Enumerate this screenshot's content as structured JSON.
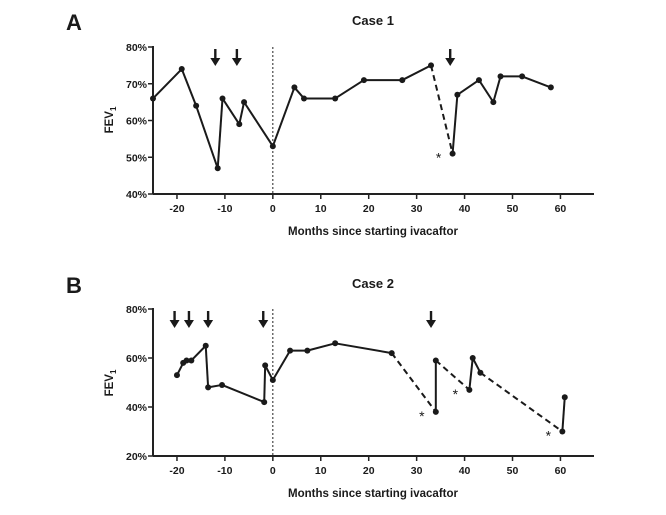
{
  "chart_data": [
    {
      "type": "line",
      "panel_label": "A",
      "title": "Case 1",
      "xlabel": "Months since starting ivacaftor",
      "ylabel": "FEV",
      "ylabel_subscript": "1",
      "xlim": [
        -25,
        67
      ],
      "ylim": [
        40,
        80
      ],
      "xticks": [
        "-20",
        "-10",
        "0",
        "10",
        "20",
        "30",
        "40",
        "50",
        "60"
      ],
      "xtick_values": [
        -20,
        -10,
        0,
        10,
        20,
        30,
        40,
        50,
        60
      ],
      "yticks": [
        "40%",
        "50%",
        "60%",
        "70%",
        "80%"
      ],
      "ytick_values": [
        40,
        50,
        60,
        70,
        80
      ],
      "reference_line_x": 0,
      "points": [
        {
          "x": -25,
          "y": 66
        },
        {
          "x": -19,
          "y": 74
        },
        {
          "x": -16,
          "y": 64
        },
        {
          "x": -11.5,
          "y": 47
        },
        {
          "x": -10.5,
          "y": 66
        },
        {
          "x": -7,
          "y": 59
        },
        {
          "x": -6,
          "y": 65
        },
        {
          "x": 0,
          "y": 53
        },
        {
          "x": 4.5,
          "y": 69
        },
        {
          "x": 6.5,
          "y": 66
        },
        {
          "x": 13,
          "y": 66
        },
        {
          "x": 19,
          "y": 71
        },
        {
          "x": 27,
          "y": 71
        },
        {
          "x": 33,
          "y": 75
        },
        {
          "x": 37.5,
          "y": 51,
          "dashed": true,
          "asterisk": true
        },
        {
          "x": 38.5,
          "y": 67
        },
        {
          "x": 43,
          "y": 71
        },
        {
          "x": 46,
          "y": 65
        },
        {
          "x": 47.5,
          "y": 72
        },
        {
          "x": 52,
          "y": 72
        },
        {
          "x": 58,
          "y": 69
        }
      ],
      "arrows_x": [
        -12,
        -7.5,
        37
      ],
      "asterisk_symbol": "*"
    },
    {
      "type": "line",
      "panel_label": "B",
      "title": "Case 2",
      "xlabel": "Months since starting ivacaftor",
      "ylabel": "FEV",
      "ylabel_subscript": "1",
      "xlim": [
        -25,
        67
      ],
      "ylim": [
        20,
        80
      ],
      "xticks": [
        "-20",
        "-10",
        "0",
        "10",
        "20",
        "30",
        "40",
        "50",
        "60"
      ],
      "xtick_values": [
        -20,
        -10,
        0,
        10,
        20,
        30,
        40,
        50,
        60
      ],
      "yticks": [
        "20%",
        "40%",
        "60%",
        "80%"
      ],
      "ytick_values": [
        20,
        40,
        60,
        80
      ],
      "reference_line_x": 0,
      "points": [
        {
          "x": -20,
          "y": 53
        },
        {
          "x": -18.7,
          "y": 58
        },
        {
          "x": -18,
          "y": 59
        },
        {
          "x": -17,
          "y": 59
        },
        {
          "x": -14,
          "y": 65
        },
        {
          "x": -13.5,
          "y": 48
        },
        {
          "x": -10.6,
          "y": 49
        },
        {
          "x": -1.8,
          "y": 42
        },
        {
          "x": -1.6,
          "y": 57
        },
        {
          "x": 0,
          "y": 51
        },
        {
          "x": 3.6,
          "y": 63
        },
        {
          "x": 7.2,
          "y": 63
        },
        {
          "x": 13,
          "y": 66
        },
        {
          "x": 24.8,
          "y": 62
        },
        {
          "x": 34,
          "y": 38,
          "dashed": true,
          "asterisk": true
        },
        {
          "x": 34,
          "y": 59
        },
        {
          "x": 41,
          "y": 47,
          "dashed": true,
          "asterisk": true
        },
        {
          "x": 41.7,
          "y": 60
        },
        {
          "x": 43.3,
          "y": 54
        },
        {
          "x": 60.4,
          "y": 30,
          "dashed": true,
          "asterisk": true
        },
        {
          "x": 60.9,
          "y": 44
        }
      ],
      "arrows_x": [
        -20.5,
        -17.5,
        -13.5,
        -2,
        33
      ],
      "asterisk_symbol": "*"
    }
  ]
}
